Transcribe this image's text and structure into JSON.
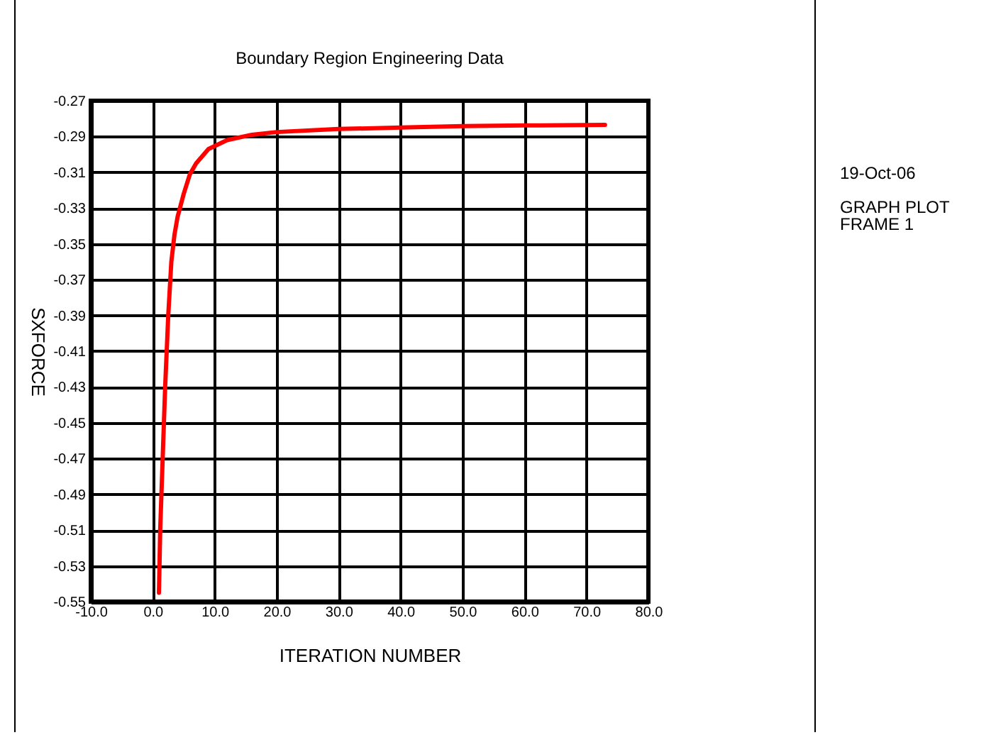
{
  "chart_data": {
    "type": "line",
    "title": "Boundary Region Engineering Data",
    "xlabel": "ITERATION NUMBER",
    "ylabel": "SXFORCE",
    "x": [
      1,
      1.2,
      1.6,
      2,
      2.5,
      3,
      3.5,
      4,
      5,
      6,
      7,
      9,
      12,
      16,
      20,
      30,
      40,
      50,
      60,
      73
    ],
    "series": [
      {
        "color": "#ff0000",
        "values": [
          -0.545,
          -0.51,
          -0.47,
          -0.43,
          -0.39,
          -0.36,
          -0.345,
          -0.335,
          -0.322,
          -0.311,
          -0.305,
          -0.297,
          -0.292,
          -0.289,
          -0.2875,
          -0.2858,
          -0.285,
          -0.2842,
          -0.2838,
          -0.2835
        ]
      }
    ],
    "xlim": [
      -10,
      80
    ],
    "xticks": [
      {
        "value": -10,
        "label": "-10.0"
      },
      {
        "value": 0,
        "label": "0.0"
      },
      {
        "value": 10,
        "label": "10.0"
      },
      {
        "value": 20,
        "label": "20.0"
      },
      {
        "value": 30,
        "label": "30.0"
      },
      {
        "value": 40,
        "label": "40.0"
      },
      {
        "value": 50,
        "label": "50.0"
      },
      {
        "value": 60,
        "label": "60.0"
      },
      {
        "value": 70,
        "label": "70.0"
      },
      {
        "value": 80,
        "label": "80.0"
      }
    ],
    "ylim": [
      -0.55,
      -0.27
    ],
    "yticks": [
      -0.55,
      -0.53,
      -0.51,
      -0.49,
      -0.47,
      -0.45,
      -0.43,
      -0.41,
      -0.39,
      -0.37,
      -0.35,
      -0.33,
      -0.31,
      -0.29,
      -0.27
    ],
    "grid": true,
    "marker": "none",
    "line_style": "solid",
    "annotations": [
      "19-Oct-06",
      "GRAPH PLOT\nFRAME 1"
    ]
  }
}
